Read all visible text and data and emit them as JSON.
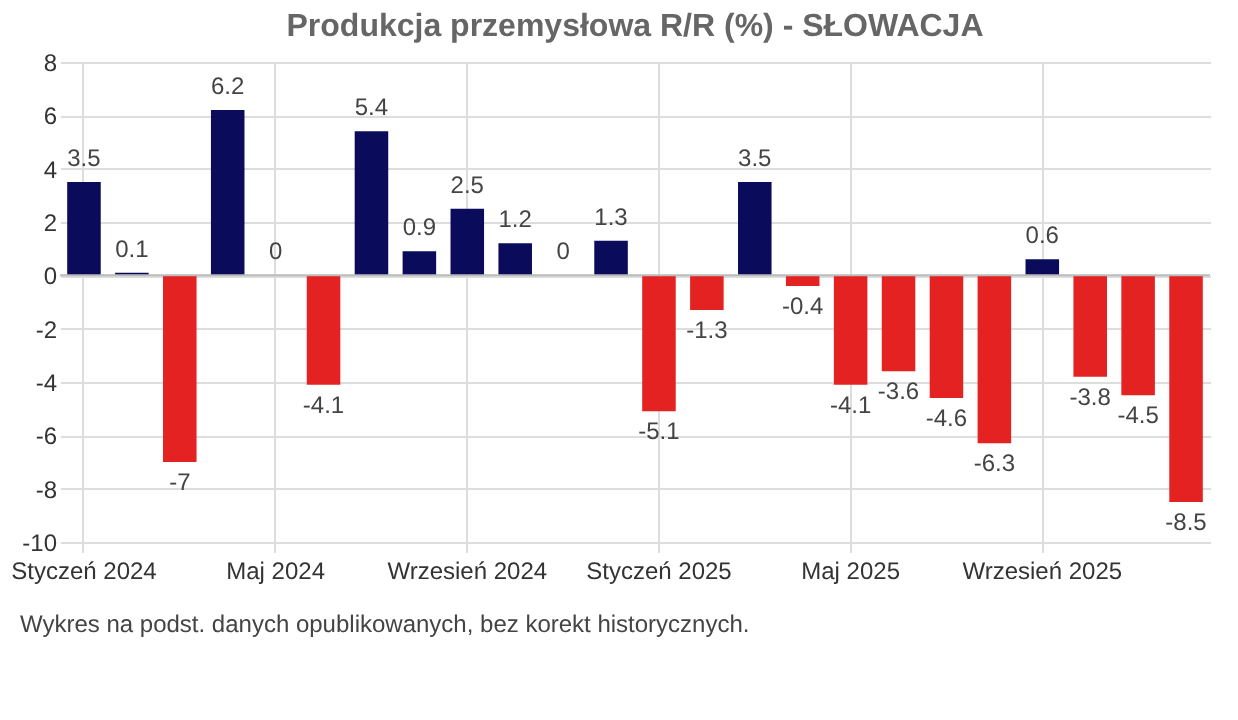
{
  "chart_data": {
    "type": "bar",
    "title": "Produkcja przemysłowa R/R (%) - SŁOWACJA",
    "categories": [
      "Styczeń 2024",
      null,
      null,
      null,
      "Maj 2024",
      null,
      null,
      null,
      "Wrzesień 2024",
      null,
      null,
      null,
      "Styczeń 2025",
      null,
      null,
      null,
      "Maj 2025",
      null,
      null,
      null,
      "Wrzesień 2025",
      null,
      null,
      null
    ],
    "values": [
      3.5,
      0.1,
      -7,
      6.2,
      0,
      -4.1,
      5.4,
      0.9,
      2.5,
      1.2,
      0,
      1.3,
      -5.1,
      -1.3,
      3.5,
      -0.4,
      -4.1,
      -3.6,
      -4.6,
      -6.3,
      0.6,
      -3.8,
      -4.5,
      -8.5
    ],
    "colors": [
      "#0b0b5c",
      "#0b0b5c",
      "#e52222",
      "#0b0b5c",
      "#0b0b5c",
      "#e52222",
      "#0b0b5c",
      "#0b0b5c",
      "#0b0b5c",
      "#0b0b5c",
      "#0b0b5c",
      "#0b0b5c",
      "#e52222",
      "#e52222",
      "#0b0b5c",
      "#e52222",
      "#e52222",
      "#e52222",
      "#e52222",
      "#e52222",
      "#0b0b5c",
      "#e52222",
      "#e52222",
      "#e52222"
    ],
    "ylim": [
      -10,
      8
    ],
    "yticks": [
      -10,
      -8,
      -6,
      -4,
      -2,
      0,
      2,
      4,
      6,
      8
    ],
    "grid": true,
    "data_labels": true,
    "annotations": [
      "Wykres na podst. danych opublikowanych, bez korekt historycznych."
    ]
  }
}
